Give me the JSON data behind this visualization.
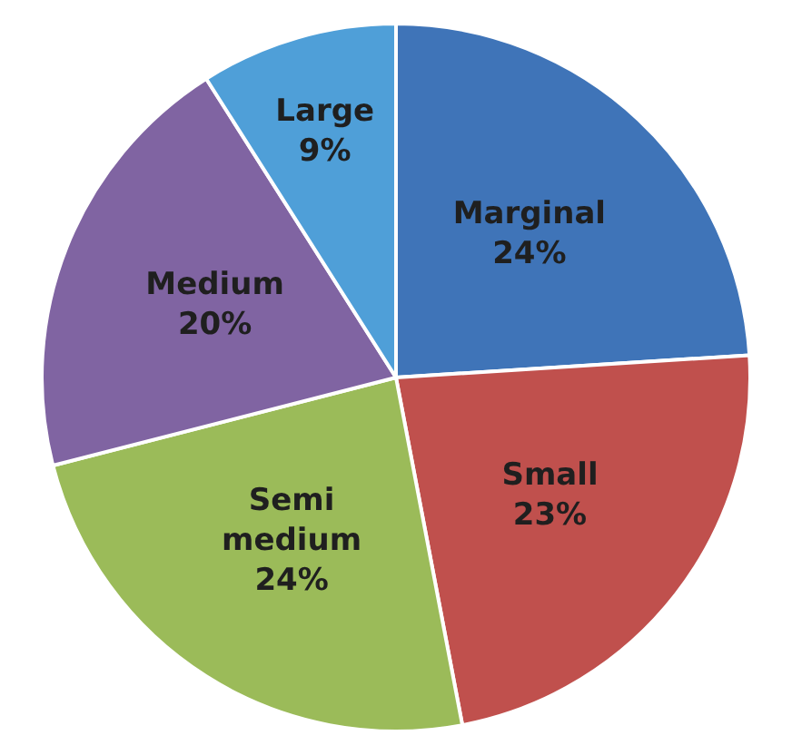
{
  "chart_data": {
    "type": "pie",
    "categories": [
      "Marginal",
      "Small",
      "Semi medium",
      "Medium",
      "Large"
    ],
    "values": [
      24,
      23,
      24,
      20,
      9
    ],
    "colors": [
      "#3f74b8",
      "#c0504d",
      "#9bbb59",
      "#8064a2",
      "#4f9fd8"
    ],
    "value_labels": [
      "24%",
      "23%",
      "24%",
      "20%",
      "9%"
    ],
    "legend": false
  }
}
